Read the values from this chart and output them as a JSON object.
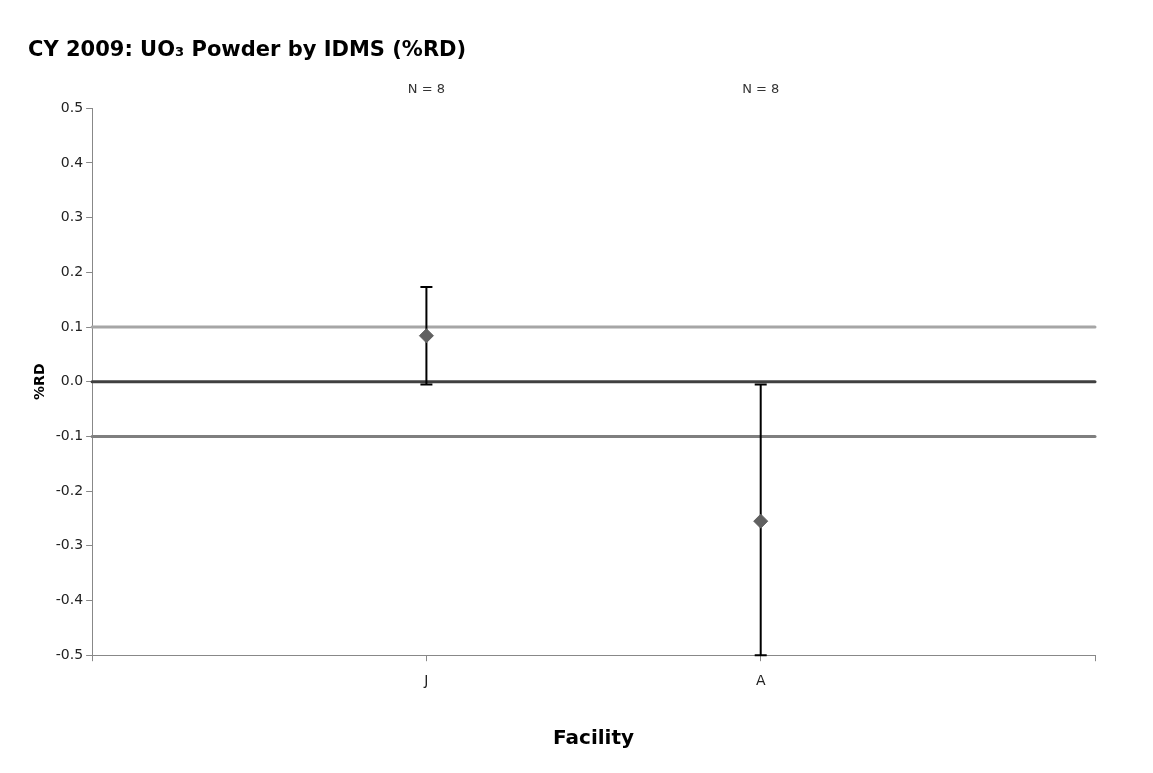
{
  "chart_data": {
    "type": "scatter",
    "title": "CY 2009: UO₃ Powder by IDMS (%RD)",
    "xlabel": "Facility",
    "ylabel": "%RD",
    "categories": [
      null,
      "J",
      "A",
      null
    ],
    "series": [
      {
        "color": "#606060",
        "values": [
          null,
          0.084,
          -0.255,
          null
        ],
        "errors": [
          null,
          [
            -0.005,
            0.173
          ],
          [
            -0.5,
            -0.005
          ],
          null
        ]
      }
    ],
    "ylim": [
      -0.5,
      0.5
    ],
    "yticks": [
      -0.5,
      -0.4,
      -0.3,
      -0.2,
      -0.1,
      {
        "value": 0,
        "label": "0.0"
      },
      0.1,
      0.2,
      0.3,
      0.4,
      0.5
    ],
    "ref_lines": [
      {
        "axis": "y",
        "value": 0.1,
        "color": "#a6a6a6"
      },
      {
        "axis": "y",
        "value": 0,
        "color": "#404040"
      },
      {
        "axis": "y",
        "value": -0.1,
        "color": "#7f7f7f"
      }
    ],
    "annotations": [
      "N = 8",
      "N = 8"
    ],
    "grid": false,
    "legend": false,
    "marker": "diamond"
  }
}
